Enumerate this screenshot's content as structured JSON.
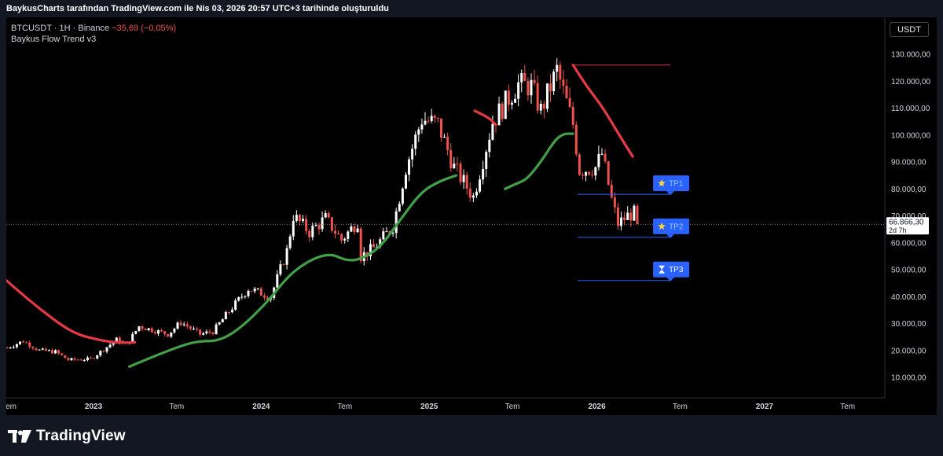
{
  "header": {
    "text": "BaykusCharts tarafından TradingView.com ile Nis 03, 2026 20:57 UTC+3 tarihinde oluşturuldu"
  },
  "legend": {
    "symbol": "BTCUSDT · 1H · Binance",
    "change": "−35,69 (−0,05%)",
    "indicator": "Baykus Flow Trend v3"
  },
  "currency_button": "USDT",
  "footer": {
    "brand": "TradingView"
  },
  "chart_data": {
    "type": "candlestick",
    "symbol": "BTCUSDT",
    "interval": "1H",
    "exchange": "Binance",
    "indicator": "Baykus Flow Trend v3",
    "ylim": [
      5000,
      133000
    ],
    "y_ticks": [
      10000,
      20000,
      30000,
      40000,
      50000,
      60000,
      70000,
      80000,
      90000,
      100000,
      110000,
      120000,
      130000
    ],
    "y_tick_labels": [
      "10.000,00",
      "20.000,00",
      "30.000,00",
      "40.000,00",
      "50.000,00",
      "60.000,00",
      "70.000,00",
      "80.000,00",
      "90.000,00",
      "100.000,00",
      "110.000,00",
      "120.000,00",
      "130.000,00"
    ],
    "x_range": [
      "2022-06-25",
      "2027-09-20"
    ],
    "x_ticks": [
      {
        "date": "2022-07-01",
        "label": "Tem"
      },
      {
        "date": "2023-01-01",
        "label": "2023"
      },
      {
        "date": "2023-07-01",
        "label": "Tem"
      },
      {
        "date": "2024-01-01",
        "label": "2024"
      },
      {
        "date": "2024-07-01",
        "label": "Tem"
      },
      {
        "date": "2025-01-01",
        "label": "2025"
      },
      {
        "date": "2025-07-01",
        "label": "Tem"
      },
      {
        "date": "2026-01-01",
        "label": "2026"
      },
      {
        "date": "2026-07-01",
        "label": "Tem"
      },
      {
        "date": "2027-01-01",
        "label": "2027"
      },
      {
        "date": "2027-07-01",
        "label": "Tem"
      }
    ],
    "price_path": [
      [
        "2022-06-27",
        21000
      ],
      [
        "2022-08-01",
        23500
      ],
      [
        "2022-09-05",
        20000
      ],
      [
        "2022-10-10",
        19500
      ],
      [
        "2022-11-07",
        16500
      ],
      [
        "2022-12-26",
        16800
      ],
      [
        "2023-02-20",
        24000
      ],
      [
        "2023-03-13",
        22000
      ],
      [
        "2023-04-10",
        29000
      ],
      [
        "2023-06-12",
        26000
      ],
      [
        "2023-07-10",
        30500
      ],
      [
        "2023-08-21",
        26000
      ],
      [
        "2023-09-18",
        27000
      ],
      [
        "2023-10-23",
        34500
      ],
      [
        "2023-12-04",
        43000
      ],
      [
        "2024-01-22",
        40000
      ],
      [
        "2024-02-26",
        57000
      ],
      [
        "2024-03-11",
        70000
      ],
      [
        "2024-04-15",
        64000
      ],
      [
        "2024-05-20",
        69000
      ],
      [
        "2024-06-24",
        61000
      ],
      [
        "2024-07-29",
        68000
      ],
      [
        "2024-08-05",
        55000
      ],
      [
        "2024-09-02",
        58000
      ],
      [
        "2024-10-14",
        66000
      ],
      [
        "2024-11-11",
        88000
      ],
      [
        "2024-12-16",
        106000
      ],
      [
        "2025-01-20",
        104000
      ],
      [
        "2025-02-24",
        88000
      ],
      [
        "2025-04-07",
        77000
      ],
      [
        "2025-05-19",
        105000
      ],
      [
        "2025-07-14",
        119000
      ],
      [
        "2025-08-11",
        118000
      ],
      [
        "2025-09-01",
        109000
      ],
      [
        "2025-10-06",
        124000
      ],
      [
        "2025-11-10",
        104000
      ],
      [
        "2025-11-24",
        87000
      ],
      [
        "2025-12-29",
        88000
      ],
      [
        "2026-01-12",
        93000
      ],
      [
        "2026-02-02",
        76000
      ],
      [
        "2026-02-16",
        67000
      ],
      [
        "2026-03-09",
        70000
      ],
      [
        "2026-03-23",
        71000
      ],
      [
        "2026-04-03",
        66866
      ]
    ],
    "trend_red_early": [
      [
        "2022-06-25",
        46000
      ],
      [
        "2022-09-01",
        36000
      ],
      [
        "2022-11-15",
        26500
      ],
      [
        "2023-01-10",
        24000
      ],
      [
        "2023-02-20",
        22800
      ],
      [
        "2023-04-01",
        23000
      ]
    ],
    "trend_green": [
      [
        "2023-03-20",
        14000
      ],
      [
        "2023-05-15",
        18000
      ],
      [
        "2023-07-15",
        22000
      ],
      [
        "2023-08-20",
        23500
      ],
      [
        "2023-10-01",
        23500
      ],
      [
        "2023-11-15",
        28000
      ],
      [
        "2024-01-15",
        38000
      ],
      [
        "2024-03-01",
        48000
      ],
      [
        "2024-04-20",
        54000
      ],
      [
        "2024-06-01",
        56000
      ],
      [
        "2024-07-01",
        53500
      ],
      [
        "2024-08-01",
        53500
      ],
      [
        "2024-09-15",
        58000
      ],
      [
        "2024-11-01",
        69000
      ],
      [
        "2024-12-15",
        79000
      ],
      [
        "2025-01-25",
        83000
      ],
      [
        "2025-03-01",
        85000
      ]
    ],
    "trend_red_mid": [
      [
        "2025-04-10",
        109000
      ],
      [
        "2025-05-10",
        106500
      ],
      [
        "2025-05-25",
        104000
      ]
    ],
    "trend_green_late": [
      [
        "2025-06-15",
        80000
      ],
      [
        "2025-07-10",
        82000
      ],
      [
        "2025-08-01",
        83500
      ],
      [
        "2025-09-01",
        90000
      ],
      [
        "2025-10-01",
        98000
      ],
      [
        "2025-10-20",
        100500
      ],
      [
        "2025-11-10",
        100500
      ]
    ],
    "trend_red_late": [
      [
        "2025-11-10",
        126000
      ],
      [
        "2025-12-10",
        118000
      ],
      [
        "2026-01-15",
        110000
      ],
      [
        "2026-02-15",
        101000
      ],
      [
        "2026-03-20",
        92000
      ]
    ],
    "resistance_line": {
      "value": 126000,
      "from": "2025-11-10",
      "to": "2026-06-10"
    },
    "take_profit_levels": [
      {
        "label": "TP1",
        "value": 78000,
        "icon": "star",
        "from": "2025-11-20",
        "to": "2026-06-10"
      },
      {
        "label": "TP2",
        "value": 62000,
        "icon": "star",
        "from": "2025-11-20",
        "to": "2026-06-10"
      },
      {
        "label": "TP3",
        "value": 46000,
        "icon": "hourglass",
        "from": "2025-11-20",
        "to": "2026-06-10"
      }
    ],
    "last_price": {
      "value": 66866.3,
      "label": "66.866,30",
      "countdown": "2d 7h"
    },
    "colors": {
      "up": "#ffffff",
      "down": "#ef5350",
      "trend_bull": "#43a047",
      "trend_bear": "#e53945",
      "tp_line": "#2962ff",
      "tp_box": "#2962ff",
      "background": "#000000",
      "frame": "#131722"
    }
  }
}
